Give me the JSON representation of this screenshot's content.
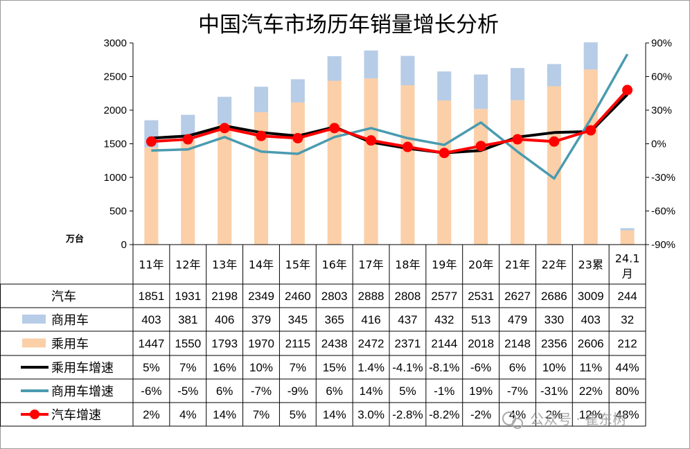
{
  "chart_data": {
    "type": "bar",
    "title": "中国汽车市场历年销量增长分析",
    "y_unit_label": "万台",
    "left_axis": {
      "ylim": [
        0,
        3000
      ],
      "ticks": [
        "0",
        "500",
        "1000",
        "1500",
        "2000",
        "2500",
        "3000"
      ]
    },
    "right_axis": {
      "ylim": [
        -90,
        90
      ],
      "ticks": [
        "-90%",
        "-60%",
        "-30%",
        "0%",
        "30%",
        "60%",
        "90%"
      ]
    },
    "categories": [
      "11年",
      "12年",
      "13年",
      "14年",
      "15年",
      "16年",
      "17年",
      "18年",
      "19年",
      "20年",
      "21年",
      "22年",
      "23累",
      "24.1月"
    ],
    "bar_series": [
      {
        "name": "乘用车",
        "color": "#fbcfa8",
        "values": [
          1447,
          1550,
          1793,
          1970,
          2115,
          2438,
          2472,
          2371,
          2144,
          2018,
          2148,
          2356,
          2606,
          212
        ]
      },
      {
        "name": "商用车",
        "color": "#b7cce6",
        "values": [
          403,
          381,
          406,
          379,
          345,
          365,
          416,
          437,
          432,
          513,
          479,
          330,
          403,
          32
        ]
      }
    ],
    "line_series": [
      {
        "name": "乘用车增速",
        "color": "#000000",
        "values": [
          5,
          7,
          16,
          10,
          7,
          15,
          1.4,
          -4.1,
          -8.1,
          -6,
          6,
          10,
          11,
          44
        ]
      },
      {
        "name": "商用车增速",
        "color": "#4a9bb0",
        "values": [
          -6,
          -5,
          6,
          -7,
          -9,
          6,
          14,
          5,
          -1,
          19,
          -7,
          -31,
          22,
          80
        ]
      },
      {
        "name": "汽车增速",
        "color": "#ff0000",
        "markers": true,
        "values": [
          2,
          4,
          14,
          7,
          5,
          14,
          3.0,
          -2.8,
          -8.2,
          -2,
          4,
          2,
          12,
          48
        ]
      }
    ],
    "table": {
      "rows": [
        {
          "label": "汽车",
          "legend": "none",
          "cells": [
            "1851",
            "1931",
            "2198",
            "2349",
            "2460",
            "2803",
            "2888",
            "2808",
            "2577",
            "2531",
            "2627",
            "2686",
            "3009",
            "244"
          ]
        },
        {
          "label": "商用车",
          "legend": "box",
          "color": "#b7cce6",
          "cells": [
            "403",
            "381",
            "406",
            "379",
            "345",
            "365",
            "416",
            "437",
            "432",
            "513",
            "479",
            "330",
            "403",
            "32"
          ]
        },
        {
          "label": "乘用车",
          "legend": "box",
          "color": "#fbcfa8",
          "cells": [
            "1447",
            "1550",
            "1793",
            "1970",
            "2115",
            "2438",
            "2472",
            "2371",
            "2144",
            "2018",
            "2148",
            "2356",
            "2606",
            "212"
          ]
        },
        {
          "label": "乘用车增速",
          "legend": "line",
          "color": "#000000",
          "cells": [
            "5%",
            "7%",
            "16%",
            "10%",
            "7%",
            "15%",
            "1.4%",
            "-4.1%",
            "-8.1%",
            "-6%",
            "6%",
            "10%",
            "11%",
            "44%"
          ]
        },
        {
          "label": "商用车增速",
          "legend": "line",
          "color": "#4a9bb0",
          "cells": [
            "-6%",
            "-5%",
            "6%",
            "-7%",
            "-9%",
            "6%",
            "14%",
            "5%",
            "-1%",
            "19%",
            "-7%",
            "-31%",
            "22%",
            "80%"
          ]
        },
        {
          "label": "汽车增速",
          "legend": "marker",
          "color": "#ff0000",
          "cells": [
            "2%",
            "4%",
            "14%",
            "7%",
            "5%",
            "14%",
            "3.0%",
            "-2.8%",
            "-8.2%",
            "-2%",
            "4%",
            "2%",
            "12%",
            "48%"
          ]
        }
      ]
    }
  },
  "watermark": "公众号 · 崔东树"
}
